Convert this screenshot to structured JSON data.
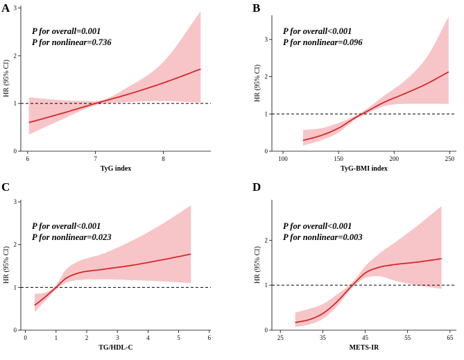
{
  "colors": {
    "curve": "#d62728",
    "band": "#f7c5c8"
  },
  "chart_data": [
    {
      "type": "line",
      "panel": "A",
      "annotation": [
        "P  for overall=0.001",
        "P for nonlinear=0.736"
      ],
      "xlabel": "TyG index",
      "ylabel": "HR (95% CI)",
      "xlim": [
        5.9,
        8.7
      ],
      "ylim": [
        0,
        3.05
      ],
      "xticks": [
        6,
        7,
        8
      ],
      "yticks": [
        0,
        1,
        2,
        3
      ],
      "ytick_labels": [
        "0",
        "1",
        "2",
        "3"
      ],
      "reference_y": 1,
      "series": [
        {
          "name": "HR",
          "x": [
            6.02,
            6.5,
            7.0,
            7.5,
            8.0,
            8.55
          ],
          "y": [
            0.6,
            0.79,
            1.0,
            1.2,
            1.43,
            1.72
          ],
          "lower": [
            0.35,
            0.66,
            0.96,
            1.03,
            1.05,
            1.02
          ],
          "upper": [
            1.13,
            1.07,
            1.05,
            1.36,
            1.87,
            2.93
          ]
        }
      ]
    },
    {
      "type": "line",
      "panel": "B",
      "annotation": [
        "P  for overall<0.001",
        "P for nonlinear=0.096"
      ],
      "xlabel": "TyG-BMI index",
      "ylabel": "HR (95% CI)",
      "xlim": [
        90,
        256
      ],
      "ylim": [
        0,
        3.65
      ],
      "xticks": [
        100,
        150,
        200,
        250
      ],
      "yticks": [
        0,
        1,
        2,
        3
      ],
      "ytick_labels": [
        "0",
        "1",
        "2",
        "3"
      ],
      "reference_y": 1,
      "series": [
        {
          "name": "HR",
          "x": [
            118,
            135,
            150,
            165,
            175,
            190,
            210,
            230,
            249
          ],
          "y": [
            0.29,
            0.43,
            0.62,
            0.9,
            1.06,
            1.3,
            1.55,
            1.82,
            2.13
          ],
          "lower": [
            0.15,
            0.3,
            0.5,
            0.85,
            1.0,
            1.2,
            1.27,
            1.27,
            1.27
          ],
          "upper": [
            0.57,
            0.62,
            0.76,
            0.95,
            1.13,
            1.47,
            1.9,
            2.55,
            3.62
          ]
        }
      ]
    },
    {
      "type": "line",
      "panel": "C",
      "annotation": [
        "P  for overall<0.001",
        "P for nonlinear=0.023"
      ],
      "xlabel": "TG/HDL-C",
      "ylabel": "HR (95% CI)",
      "xlim": [
        -0.15,
        6.05
      ],
      "ylim": [
        0,
        3.05
      ],
      "xticks": [
        0,
        1,
        2,
        3,
        4,
        5,
        6
      ],
      "yticks": [
        0,
        1,
        2,
        3
      ],
      "ytick_labels": [
        "0",
        "1",
        "2",
        "3"
      ],
      "reference_y": 1,
      "series": [
        {
          "name": "HR",
          "x": [
            0.3,
            0.6,
            1.0,
            1.3,
            1.7,
            2.5,
            3.5,
            4.5,
            5.4
          ],
          "y": [
            0.58,
            0.75,
            1.0,
            1.2,
            1.33,
            1.42,
            1.52,
            1.65,
            1.78
          ],
          "lower": [
            0.42,
            0.65,
            0.95,
            1.1,
            1.17,
            1.19,
            1.17,
            1.14,
            1.1
          ],
          "upper": [
            0.85,
            0.87,
            1.05,
            1.4,
            1.6,
            1.78,
            2.1,
            2.5,
            2.92
          ]
        }
      ]
    },
    {
      "type": "line",
      "panel": "D",
      "annotation": [
        "P  for overall<0.001",
        "P for nonlinear=0.003"
      ],
      "xlabel": "METS-IR",
      "ylabel": "HR (95% CI)",
      "xlim": [
        23,
        66.5
      ],
      "ylim": [
        0,
        2.9
      ],
      "xticks": [
        25,
        35,
        45,
        55,
        65
      ],
      "yticks": [
        0,
        1,
        2
      ],
      "ytick_labels": [
        "0",
        "1",
        "2"
      ],
      "reference_y": 1,
      "series": [
        {
          "name": "HR",
          "x": [
            28.5,
            32,
            35,
            38,
            42,
            45,
            48,
            52,
            57,
            63
          ],
          "y": [
            0.17,
            0.24,
            0.37,
            0.6,
            1.0,
            1.27,
            1.39,
            1.46,
            1.51,
            1.59
          ],
          "lower": [
            0.07,
            0.13,
            0.25,
            0.49,
            0.95,
            1.16,
            1.2,
            1.1,
            1.0,
            0.92
          ],
          "upper": [
            0.39,
            0.48,
            0.58,
            0.77,
            1.07,
            1.42,
            1.68,
            1.95,
            2.3,
            2.76
          ]
        }
      ]
    }
  ]
}
